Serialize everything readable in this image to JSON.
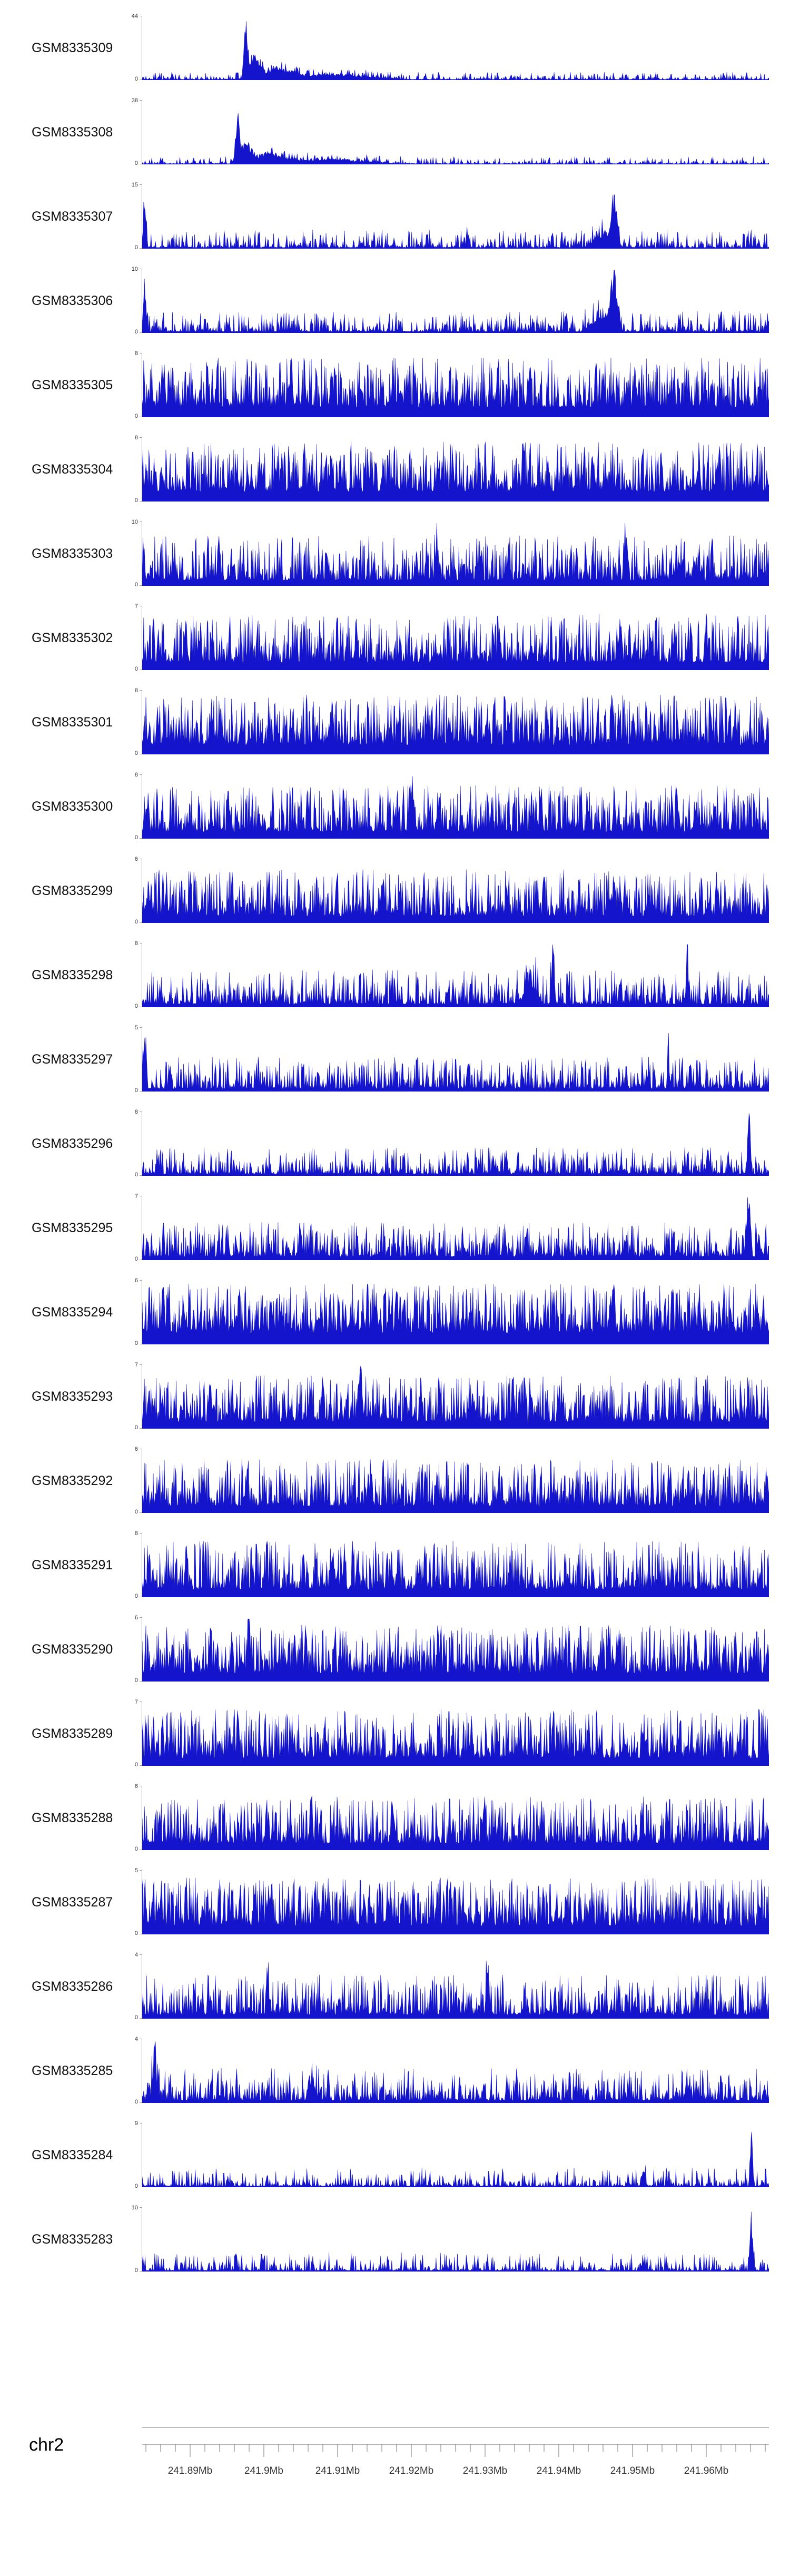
{
  "page": {
    "background": "#ffffff"
  },
  "chart_data": {
    "type": "area",
    "legend": "none",
    "grid": "off",
    "signal_color": "#1414cc",
    "axis_color": "#8c8c8c",
    "y_axis_min": "0",
    "samples": 850,
    "tracks": [
      {
        "label": "GSM8335309",
        "ymax": 44,
        "seed": 101,
        "base": 0.12,
        "pow": 4,
        "floor": 0.02,
        "peaks": [
          [
            0.165,
            1.0,
            0.006
          ],
          [
            0.178,
            0.42,
            0.018
          ],
          [
            0.215,
            0.2,
            0.05
          ],
          [
            0.3,
            0.1,
            0.12
          ]
        ]
      },
      {
        "label": "GSM8335308",
        "ymax": 38,
        "seed": 102,
        "base": 0.12,
        "pow": 4,
        "floor": 0.02,
        "peaks": [
          [
            0.152,
            1.0,
            0.006
          ],
          [
            0.165,
            0.38,
            0.018
          ],
          [
            0.2,
            0.17,
            0.05
          ],
          [
            0.29,
            0.09,
            0.12
          ]
        ]
      },
      {
        "label": "GSM8335307",
        "ymax": 15,
        "seed": 103,
        "base": 0.3,
        "pow": 3.5,
        "floor": 0.03,
        "peaks": [
          [
            0.004,
            0.85,
            0.005
          ],
          [
            0.753,
            1.0,
            0.009
          ],
          [
            0.735,
            0.28,
            0.03
          ],
          [
            0.52,
            0.18,
            0.005
          ]
        ]
      },
      {
        "label": "GSM8335306",
        "ymax": 10,
        "seed": 104,
        "base": 0.34,
        "pow": 3.5,
        "floor": 0.04,
        "peaks": [
          [
            0.004,
            0.75,
            0.005
          ],
          [
            0.753,
            1.0,
            0.011
          ],
          [
            0.735,
            0.3,
            0.035
          ]
        ]
      },
      {
        "label": "GSM8335305",
        "ymax": 8,
        "seed": 105,
        "base": 0.95,
        "pow": 1.8,
        "floor": 0.16,
        "peaks": []
      },
      {
        "label": "GSM8335304",
        "ymax": 8,
        "seed": 106,
        "base": 0.95,
        "pow": 1.8,
        "floor": 0.16,
        "peaks": []
      },
      {
        "label": "GSM8335303",
        "ymax": 10,
        "seed": 107,
        "base": 0.8,
        "pow": 2.2,
        "floor": 0.1,
        "peaks": [
          [
            0.47,
            0.85,
            0.004
          ],
          [
            0.77,
            0.95,
            0.004
          ]
        ]
      },
      {
        "label": "GSM8335302",
        "ymax": 7,
        "seed": 108,
        "base": 0.9,
        "pow": 1.9,
        "floor": 0.13,
        "peaks": []
      },
      {
        "label": "GSM8335301",
        "ymax": 8,
        "seed": 109,
        "base": 0.95,
        "pow": 1.8,
        "floor": 0.15,
        "peaks": []
      },
      {
        "label": "GSM8335300",
        "ymax": 8,
        "seed": 110,
        "base": 0.85,
        "pow": 2.0,
        "floor": 0.12,
        "peaks": [
          [
            0.43,
            1.0,
            0.004
          ]
        ]
      },
      {
        "label": "GSM8335299",
        "ymax": 6,
        "seed": 111,
        "base": 0.85,
        "pow": 2.0,
        "floor": 0.12,
        "peaks": []
      },
      {
        "label": "GSM8335298",
        "ymax": 8,
        "seed": 112,
        "base": 0.6,
        "pow": 2.6,
        "floor": 0.07,
        "peaks": [
          [
            0.655,
            1.0,
            0.005
          ],
          [
            0.62,
            0.4,
            0.02
          ],
          [
            0.87,
            0.72,
            0.005
          ]
        ]
      },
      {
        "label": "GSM8335297",
        "ymax": 5,
        "seed": 113,
        "base": 0.55,
        "pow": 2.6,
        "floor": 0.07,
        "peaks": [
          [
            0.004,
            1.0,
            0.005
          ],
          [
            0.52,
            0.55,
            0.004
          ],
          [
            0.84,
            0.55,
            0.004
          ]
        ]
      },
      {
        "label": "GSM8335296",
        "ymax": 8,
        "seed": 114,
        "base": 0.45,
        "pow": 3.0,
        "floor": 0.05,
        "peaks": [
          [
            0.968,
            1.0,
            0.005
          ]
        ]
      },
      {
        "label": "GSM8335295",
        "ymax": 7,
        "seed": 115,
        "base": 0.6,
        "pow": 2.4,
        "floor": 0.08,
        "peaks": [
          [
            0.968,
            1.0,
            0.006
          ]
        ]
      },
      {
        "label": "GSM8335294",
        "ymax": 6,
        "seed": 116,
        "base": 0.97,
        "pow": 1.6,
        "floor": 0.18,
        "peaks": []
      },
      {
        "label": "GSM8335293",
        "ymax": 7,
        "seed": 117,
        "base": 0.85,
        "pow": 2.0,
        "floor": 0.12,
        "peaks": [
          [
            0.35,
            1.0,
            0.004
          ]
        ]
      },
      {
        "label": "GSM8335292",
        "ymax": 6,
        "seed": 118,
        "base": 0.85,
        "pow": 2.0,
        "floor": 0.12,
        "peaks": []
      },
      {
        "label": "GSM8335291",
        "ymax": 8,
        "seed": 119,
        "base": 0.9,
        "pow": 1.9,
        "floor": 0.13,
        "peaks": []
      },
      {
        "label": "GSM8335290",
        "ymax": 6,
        "seed": 120,
        "base": 0.9,
        "pow": 1.8,
        "floor": 0.14,
        "peaks": [
          [
            0.17,
            0.95,
            0.005
          ]
        ]
      },
      {
        "label": "GSM8335289",
        "ymax": 7,
        "seed": 121,
        "base": 0.9,
        "pow": 1.9,
        "floor": 0.13,
        "peaks": []
      },
      {
        "label": "GSM8335288",
        "ymax": 6,
        "seed": 122,
        "base": 0.85,
        "pow": 2.0,
        "floor": 0.12,
        "peaks": [
          [
            0.27,
            1.0,
            0.004
          ]
        ]
      },
      {
        "label": "GSM8335287",
        "ymax": 5,
        "seed": 123,
        "base": 0.9,
        "pow": 1.8,
        "floor": 0.14,
        "peaks": []
      },
      {
        "label": "GSM8335286",
        "ymax": 4,
        "seed": 124,
        "base": 0.7,
        "pow": 2.4,
        "floor": 0.08,
        "peaks": [
          [
            0.2,
            0.9,
            0.004
          ],
          [
            0.55,
            0.85,
            0.004
          ]
        ]
      },
      {
        "label": "GSM8335285",
        "ymax": 4,
        "seed": 125,
        "base": 0.55,
        "pow": 2.8,
        "floor": 0.06,
        "peaks": [
          [
            0.02,
            1.0,
            0.006
          ],
          [
            0.27,
            0.45,
            0.01
          ]
        ]
      },
      {
        "label": "GSM8335284",
        "ymax": 9,
        "seed": 126,
        "base": 0.3,
        "pow": 4,
        "floor": 0.03,
        "peaks": [
          [
            0.972,
            1.0,
            0.004
          ],
          [
            0.8,
            0.28,
            0.006
          ]
        ]
      },
      {
        "label": "GSM8335283",
        "ymax": 10,
        "seed": 127,
        "base": 0.3,
        "pow": 4,
        "floor": 0.03,
        "peaks": [
          [
            0.972,
            1.0,
            0.005
          ],
          [
            0.001,
            0.25,
            0.004
          ],
          [
            0.8,
            0.18,
            0.006
          ]
        ]
      }
    ],
    "x_axis": {
      "chromosome": "chr2",
      "unit": "Mb",
      "range_mb": [
        241.8835,
        241.9685
      ],
      "major_step_mb": 0.01,
      "minor_step_mb": 0.002,
      "ticks": [
        {
          "mb": 241.89,
          "label": "241.89Mb"
        },
        {
          "mb": 241.9,
          "label": "241.9Mb"
        },
        {
          "mb": 241.91,
          "label": "241.91Mb"
        },
        {
          "mb": 241.92,
          "label": "241.92Mb"
        },
        {
          "mb": 241.93,
          "label": "241.93Mb"
        },
        {
          "mb": 241.94,
          "label": "241.94Mb"
        },
        {
          "mb": 241.95,
          "label": "241.95Mb"
        },
        {
          "mb": 241.96,
          "label": "241.96Mb"
        }
      ]
    }
  }
}
